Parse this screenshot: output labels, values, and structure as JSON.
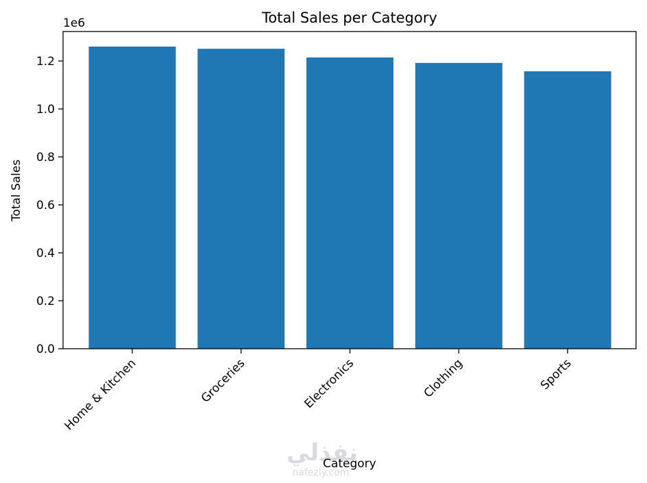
{
  "chart_data": {
    "type": "bar",
    "title": "Total Sales per Category",
    "xlabel": "Category",
    "ylabel": "Total Sales",
    "offset_label": "1e6",
    "categories": [
      "Home & Kitchen",
      "Groceries",
      "Electronics",
      "Clothing",
      "Sports"
    ],
    "values": [
      1260000,
      1251000,
      1215000,
      1192000,
      1157000
    ],
    "ylim": [
      0,
      1323000
    ],
    "y_ticks": [
      0,
      200000,
      400000,
      600000,
      800000,
      1000000,
      1200000
    ],
    "y_tick_labels": [
      "0.0",
      "0.2",
      "0.4",
      "0.6",
      "0.8",
      "1.0",
      "1.2"
    ],
    "bar_color": "#1f77b4",
    "grid": false,
    "legend": "none"
  },
  "watermark": {
    "arabic": "نفذلي",
    "latin": "nafezly.com"
  }
}
